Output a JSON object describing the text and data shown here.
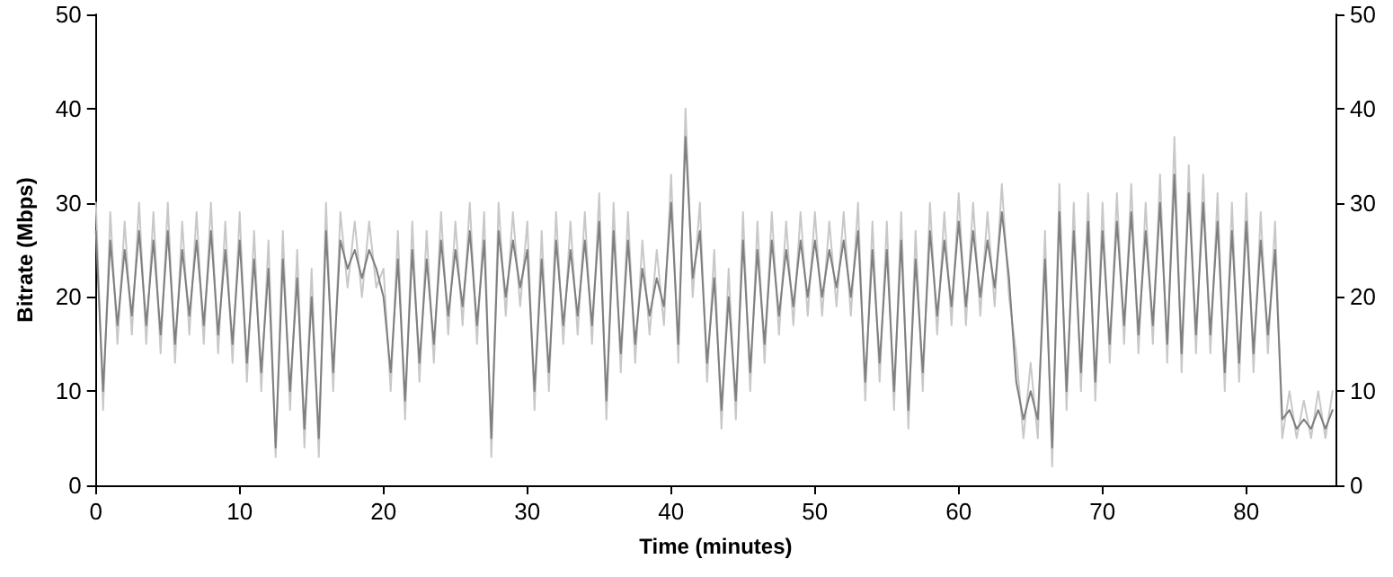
{
  "chart_data": {
    "type": "line",
    "xlabel": "Time (minutes)",
    "ylabel": "Bitrate (Mbps)",
    "xlim": [
      0,
      86.2
    ],
    "xticks": [
      0,
      10,
      20,
      30,
      40,
      50,
      60,
      70,
      80
    ],
    "ylim": [
      0,
      50
    ],
    "yticks": [
      0,
      10,
      20,
      30,
      40,
      50
    ],
    "y2lim": [
      0,
      50
    ],
    "y2ticks": [
      0,
      10,
      20,
      30,
      40,
      50
    ],
    "grid": false,
    "marker": "none",
    "line_style": "solid",
    "x": [
      0,
      0.5,
      1,
      1.5,
      2,
      2.5,
      3,
      3.5,
      4,
      4.5,
      5,
      5.5,
      6,
      6.5,
      7,
      7.5,
      8,
      8.5,
      9,
      9.5,
      10,
      10.5,
      11,
      11.5,
      12,
      12.5,
      13,
      13.5,
      14,
      14.5,
      15,
      15.5,
      16,
      16.5,
      17,
      17.5,
      18,
      18.5,
      19,
      19.5,
      20,
      20.5,
      21,
      21.5,
      22,
      22.5,
      23,
      23.5,
      24,
      24.5,
      25,
      25.5,
      26,
      26.5,
      27,
      27.5,
      28,
      28.5,
      29,
      29.5,
      30,
      30.5,
      31,
      31.5,
      32,
      32.5,
      33,
      33.5,
      34,
      34.5,
      35,
      35.5,
      36,
      36.5,
      37,
      37.5,
      38,
      38.5,
      39,
      39.5,
      40,
      40.5,
      41,
      41.5,
      42,
      42.5,
      43,
      43.5,
      44,
      44.5,
      45,
      45.5,
      46,
      46.5,
      47,
      47.5,
      48,
      48.5,
      49,
      49.5,
      50,
      50.5,
      51,
      51.5,
      52,
      52.5,
      53,
      53.5,
      54,
      54.5,
      55,
      55.5,
      56,
      56.5,
      57,
      57.5,
      58,
      58.5,
      59,
      59.5,
      60,
      60.5,
      61,
      61.5,
      62,
      62.5,
      63,
      63.5,
      64,
      64.5,
      65,
      65.5,
      66,
      66.5,
      67,
      67.5,
      68,
      68.5,
      69,
      69.5,
      70,
      70.5,
      71,
      71.5,
      72,
      72.5,
      73,
      73.5,
      74,
      74.5,
      75,
      75.5,
      76,
      76.5,
      77,
      77.5,
      78,
      78.5,
      79,
      79.5,
      80,
      80.5,
      81,
      81.5,
      82,
      82.5,
      83,
      83.5,
      84,
      84.5,
      85,
      85.5,
      86
    ],
    "series": [
      {
        "color": "#c8c8c8",
        "values": [
          30,
          8,
          29,
          15,
          28,
          16,
          30,
          15,
          29,
          14,
          30,
          13,
          28,
          16,
          29,
          15,
          30,
          14,
          28,
          13,
          29,
          11,
          27,
          10,
          26,
          3,
          27,
          8,
          25,
          4,
          23,
          3,
          30,
          10,
          29,
          21,
          28,
          20,
          28,
          21,
          23,
          10,
          27,
          7,
          28,
          11,
          27,
          13,
          29,
          16,
          28,
          17,
          30,
          15,
          29,
          3,
          30,
          18,
          29,
          19,
          28,
          8,
          27,
          10,
          29,
          15,
          28,
          16,
          29,
          15,
          31,
          7,
          30,
          12,
          29,
          13,
          26,
          16,
          25,
          17,
          33,
          13,
          40,
          20,
          30,
          11,
          25,
          6,
          23,
          7,
          29,
          10,
          28,
          13,
          29,
          16,
          28,
          17,
          29,
          18,
          29,
          18,
          28,
          19,
          29,
          18,
          30,
          9,
          28,
          11,
          28,
          8,
          29,
          6,
          27,
          10,
          30,
          16,
          29,
          17,
          31,
          17,
          30,
          18,
          29,
          19,
          32,
          20,
          14,
          5,
          13,
          5,
          27,
          2,
          32,
          8,
          30,
          10,
          31,
          9,
          30,
          13,
          31,
          15,
          32,
          14,
          30,
          15,
          33,
          13,
          37,
          12,
          34,
          14,
          33,
          14,
          31,
          10,
          30,
          11,
          31,
          12,
          29,
          14,
          28,
          5,
          10,
          5,
          9,
          5,
          10,
          5,
          10
        ]
      },
      {
        "color": "#7f7f7f",
        "values": [
          27,
          10,
          26,
          17,
          25,
          18,
          27,
          17,
          26,
          16,
          27,
          15,
          25,
          18,
          26,
          17,
          27,
          16,
          25,
          15,
          26,
          13,
          24,
          12,
          23,
          4,
          24,
          10,
          22,
          6,
          20,
          5,
          27,
          12,
          26,
          23,
          25,
          22,
          25,
          23,
          20,
          12,
          24,
          9,
          25,
          13,
          24,
          15,
          26,
          18,
          25,
          19,
          27,
          17,
          26,
          5,
          27,
          20,
          26,
          21,
          25,
          10,
          24,
          12,
          26,
          17,
          25,
          18,
          26,
          17,
          28,
          9,
          27,
          14,
          26,
          15,
          23,
          18,
          22,
          19,
          30,
          15,
          37,
          22,
          27,
          13,
          22,
          8,
          20,
          9,
          26,
          12,
          25,
          15,
          26,
          18,
          25,
          19,
          26,
          20,
          26,
          20,
          25,
          21,
          26,
          20,
          27,
          11,
          25,
          13,
          25,
          10,
          26,
          8,
          24,
          12,
          27,
          18,
          26,
          19,
          28,
          19,
          27,
          20,
          26,
          21,
          29,
          22,
          11,
          7,
          10,
          7,
          24,
          4,
          29,
          10,
          27,
          12,
          28,
          11,
          27,
          15,
          28,
          17,
          29,
          16,
          27,
          17,
          30,
          15,
          33,
          14,
          31,
          16,
          30,
          16,
          28,
          12,
          27,
          13,
          28,
          14,
          26,
          16,
          25,
          7,
          8,
          6,
          7,
          6,
          8,
          6,
          8
        ]
      }
    ]
  }
}
